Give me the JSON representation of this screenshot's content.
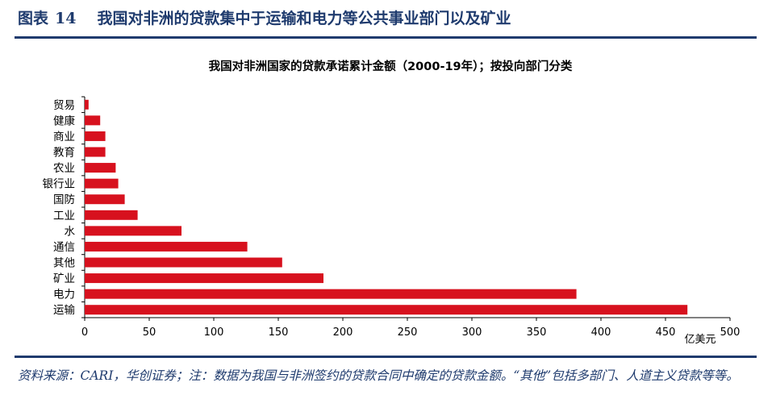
{
  "figure": {
    "label": "图表",
    "number": "14",
    "caption": "我国对非洲的贷款集中于运输和电力等公共事业部门以及矿业"
  },
  "footnote": "资料来源：CARI，华创证券；注：数据为我国与非洲签约的贷款合同中确定的贷款金额。“其他”包括多部门、人道主义贷款等等。",
  "colors": {
    "accent": "#1f3b6e",
    "bar": "#d7111e"
  },
  "chart_data": {
    "type": "bar",
    "orientation": "horizontal",
    "title": "我国对非洲国家的贷款承诺累计金额（2000-19年）；按投向部门分类",
    "xlabel": "",
    "ylabel": "",
    "unit": "亿美元",
    "xlim": [
      0,
      500
    ],
    "xticks": [
      "0",
      "50",
      "100",
      "150",
      "200",
      "250",
      "300",
      "350",
      "400",
      "450",
      "500"
    ],
    "grid": false,
    "categories": [
      "贸易",
      "健康",
      "商业",
      "教育",
      "农业",
      "银行业",
      "国防",
      "工业",
      "水",
      "通信",
      "其他",
      "矿业",
      "电力",
      "运输"
    ],
    "values": [
      3,
      12,
      16,
      16,
      24,
      26,
      31,
      41,
      75,
      126,
      153,
      185,
      381,
      467
    ]
  }
}
